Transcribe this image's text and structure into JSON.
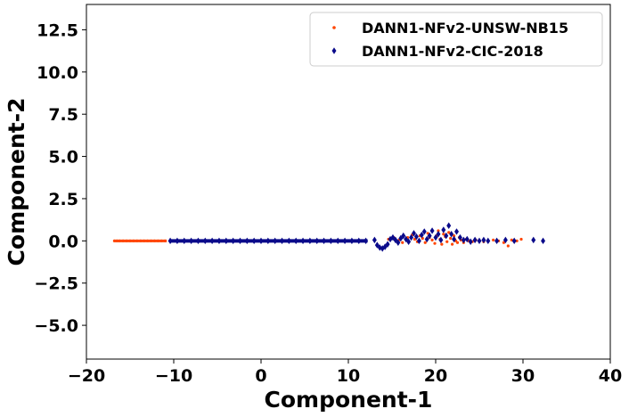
{
  "chart_data": {
    "type": "scatter",
    "title": "",
    "xlabel": "Component-1",
    "ylabel": "Component-2",
    "xlim": [
      -20,
      40
    ],
    "ylim": [
      -7,
      14
    ],
    "xticks": [
      -20,
      -10,
      0,
      10,
      20,
      30,
      40
    ],
    "yticks": [
      -5.0,
      -2.5,
      0.0,
      2.5,
      5.0,
      7.5,
      10.0,
      12.5
    ],
    "xtick_labels": [
      "−20",
      "−10",
      "0",
      "10",
      "20",
      "30",
      "40"
    ],
    "ytick_labels": [
      "−5.0",
      "−2.5",
      "0.0",
      "2.5",
      "5.0",
      "7.5",
      "10.0",
      "12.5"
    ],
    "grid": false,
    "legend_position": "top-right",
    "series": [
      {
        "name": "DANN1-NFv2-UNSW-NB15",
        "color": "#ff4500",
        "marker": "dot",
        "points": [
          [
            -16.8,
            0.0
          ],
          [
            -16.5,
            0.0
          ],
          [
            -16.2,
            0.0
          ],
          [
            -15.8,
            0.0
          ],
          [
            -15.4,
            0.0
          ],
          [
            -15.0,
            0.0
          ],
          [
            -14.6,
            0.0
          ],
          [
            -14.2,
            0.0
          ],
          [
            -13.8,
            0.0
          ],
          [
            -13.4,
            0.0
          ],
          [
            -13.0,
            0.0
          ],
          [
            -12.6,
            0.0
          ],
          [
            -12.2,
            0.0
          ],
          [
            -11.8,
            0.0
          ],
          [
            -11.4,
            0.0
          ],
          [
            -11.0,
            0.0
          ],
          [
            14.6,
            0.1
          ],
          [
            15.2,
            0.2
          ],
          [
            15.8,
            0.05
          ],
          [
            16.2,
            -0.1
          ],
          [
            16.8,
            0.2
          ],
          [
            17.3,
            0.35
          ],
          [
            17.6,
            0.1
          ],
          [
            17.9,
            -0.05
          ],
          [
            18.2,
            0.3
          ],
          [
            18.5,
            0.15
          ],
          [
            18.8,
            -0.1
          ],
          [
            19.1,
            0.45
          ],
          [
            19.3,
            0.2
          ],
          [
            19.6,
            0.05
          ],
          [
            19.9,
            -0.15
          ],
          [
            20.1,
            0.3
          ],
          [
            20.3,
            0.6
          ],
          [
            20.5,
            0.1
          ],
          [
            20.7,
            -0.2
          ],
          [
            20.9,
            0.4
          ],
          [
            21.1,
            0.25
          ],
          [
            21.3,
            -0.05
          ],
          [
            21.5,
            0.5
          ],
          [
            21.7,
            0.15
          ],
          [
            21.9,
            -0.2
          ],
          [
            22.1,
            0.3
          ],
          [
            22.3,
            0.0
          ],
          [
            22.5,
            -0.1
          ],
          [
            22.7,
            0.2
          ],
          [
            22.9,
            0.05
          ],
          [
            23.2,
            -0.1
          ],
          [
            23.5,
            0.1
          ],
          [
            23.8,
            0.0
          ],
          [
            24.2,
            -0.05
          ],
          [
            24.6,
            0.05
          ],
          [
            25.0,
            0.0
          ],
          [
            25.5,
            -0.05
          ],
          [
            26.0,
            0.0
          ],
          [
            26.6,
            0.05
          ],
          [
            27.2,
            0.0
          ],
          [
            27.8,
            -0.1
          ],
          [
            28.3,
            -0.3
          ],
          [
            28.7,
            0.05
          ],
          [
            29.3,
            0.0
          ],
          [
            29.8,
            0.1
          ]
        ]
      },
      {
        "name": "DANN1-NFv2-CIC-2018",
        "color": "#0a0a8a",
        "marker": "diamond",
        "points": [
          [
            -10.4,
            0.0
          ],
          [
            -9.6,
            0.0
          ],
          [
            -8.8,
            0.0
          ],
          [
            -8.0,
            0.0
          ],
          [
            -7.2,
            0.0
          ],
          [
            -6.4,
            0.0
          ],
          [
            -5.6,
            0.0
          ],
          [
            -4.8,
            0.0
          ],
          [
            -4.0,
            0.0
          ],
          [
            -3.2,
            0.0
          ],
          [
            -2.4,
            0.0
          ],
          [
            -1.6,
            0.0
          ],
          [
            -0.8,
            0.0
          ],
          [
            0.0,
            0.0
          ],
          [
            0.8,
            0.0
          ],
          [
            1.6,
            0.0
          ],
          [
            2.4,
            0.0
          ],
          [
            3.2,
            0.0
          ],
          [
            4.0,
            0.0
          ],
          [
            4.8,
            0.0
          ],
          [
            5.6,
            0.0
          ],
          [
            6.4,
            0.0
          ],
          [
            7.2,
            0.0
          ],
          [
            8.0,
            0.0
          ],
          [
            8.8,
            0.0
          ],
          [
            9.6,
            0.0
          ],
          [
            10.4,
            0.0
          ],
          [
            11.2,
            0.0
          ],
          [
            12.0,
            0.0
          ],
          [
            13.0,
            0.05
          ],
          [
            13.3,
            -0.25
          ],
          [
            13.6,
            -0.4
          ],
          [
            13.9,
            -0.45
          ],
          [
            14.2,
            -0.35
          ],
          [
            14.5,
            -0.2
          ],
          [
            14.8,
            0.1
          ],
          [
            15.1,
            0.2
          ],
          [
            15.4,
            0.05
          ],
          [
            15.7,
            -0.1
          ],
          [
            16.0,
            0.15
          ],
          [
            16.3,
            0.3
          ],
          [
            16.6,
            0.1
          ],
          [
            16.9,
            -0.05
          ],
          [
            17.2,
            0.2
          ],
          [
            17.5,
            0.45
          ],
          [
            17.8,
            0.25
          ],
          [
            18.1,
            0.0
          ],
          [
            18.4,
            0.35
          ],
          [
            18.7,
            0.55
          ],
          [
            19.0,
            0.1
          ],
          [
            19.3,
            0.3
          ],
          [
            19.6,
            0.6
          ],
          [
            20.0,
            0.2
          ],
          [
            20.3,
            0.4
          ],
          [
            20.6,
            0.05
          ],
          [
            20.9,
            0.65
          ],
          [
            21.2,
            0.3
          ],
          [
            21.5,
            0.9
          ],
          [
            21.8,
            0.4
          ],
          [
            22.1,
            0.1
          ],
          [
            22.4,
            0.55
          ],
          [
            22.8,
            0.2
          ],
          [
            23.2,
            0.05
          ],
          [
            23.6,
            0.1
          ],
          [
            24.0,
            -0.05
          ],
          [
            24.5,
            0.05
          ],
          [
            25.0,
            0.0
          ],
          [
            25.5,
            0.05
          ],
          [
            26.0,
            0.0
          ],
          [
            27.0,
            0.0
          ],
          [
            28.0,
            0.05
          ],
          [
            29.0,
            0.0
          ],
          [
            31.2,
            0.05
          ],
          [
            32.3,
            0.0
          ]
        ]
      }
    ]
  }
}
